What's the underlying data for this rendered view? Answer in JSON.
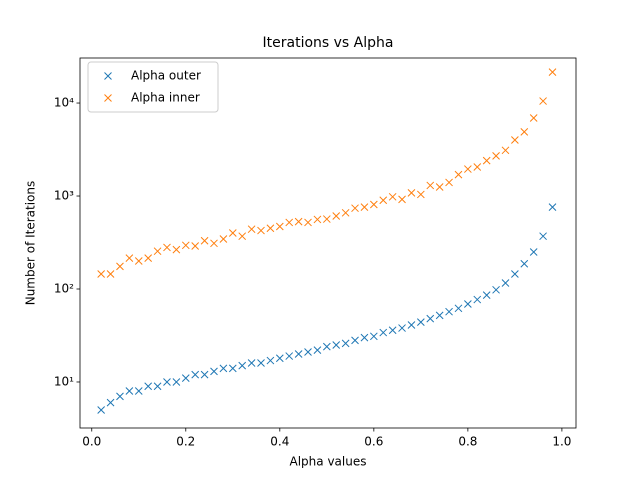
{
  "chart_data": {
    "type": "scatter",
    "title": "Iterations vs Alpha",
    "x_label": "Alpha values",
    "y_label": "Number of Iterations",
    "x": [
      0.02,
      0.04,
      0.06,
      0.08,
      0.1,
      0.12,
      0.14,
      0.16,
      0.18,
      0.2,
      0.22,
      0.24,
      0.26,
      0.28,
      0.3,
      0.32,
      0.34,
      0.36,
      0.38,
      0.4,
      0.42,
      0.44,
      0.46,
      0.48,
      0.5,
      0.52,
      0.54,
      0.56,
      0.58,
      0.6,
      0.62,
      0.64,
      0.66,
      0.68,
      0.7,
      0.72,
      0.74,
      0.76,
      0.78,
      0.8,
      0.82,
      0.84,
      0.86,
      0.88,
      0.9,
      0.92,
      0.94,
      0.96,
      0.98
    ],
    "series": [
      {
        "name": "Alpha outer",
        "color": "#1f77b4",
        "values": [
          5,
          6,
          7,
          8,
          8,
          9,
          9,
          10,
          10,
          11,
          12,
          12,
          13,
          14,
          14,
          15,
          16,
          16,
          17,
          18,
          19,
          20,
          21,
          22,
          24,
          25,
          26,
          28,
          30,
          31,
          34,
          36,
          38,
          41,
          44,
          48,
          52,
          57,
          62,
          69,
          77,
          86,
          98,
          116,
          145,
          187,
          250,
          370,
          760
        ]
      },
      {
        "name": "Alpha inner",
        "color": "#ff7f0e",
        "values": [
          145,
          145,
          175,
          215,
          200,
          215,
          255,
          280,
          265,
          295,
          290,
          330,
          310,
          345,
          400,
          370,
          440,
          425,
          450,
          470,
          520,
          530,
          520,
          560,
          565,
          610,
          660,
          740,
          760,
          810,
          900,
          980,
          920,
          1080,
          1040,
          1300,
          1250,
          1400,
          1700,
          1950,
          2050,
          2400,
          2700,
          3100,
          4000,
          4900,
          6900,
          10500,
          21500
        ]
      }
    ],
    "xlim": [
      -0.025,
      1.03
    ],
    "xticks": [
      {
        "value": 0,
        "label": "0.0"
      },
      0.2,
      0.4,
      0.6,
      0.8,
      {
        "value": 1,
        "label": "1.0"
      }
    ],
    "ylim": [
      3.2,
      30500
    ],
    "y_scale": "log",
    "yticks": [
      {
        "value": 10,
        "label": "10¹"
      },
      {
        "value": 100,
        "label": "10²"
      },
      {
        "value": 1000,
        "label": "10³"
      },
      {
        "value": 10000,
        "label": "10⁴"
      }
    ],
    "legend": "upper left"
  }
}
